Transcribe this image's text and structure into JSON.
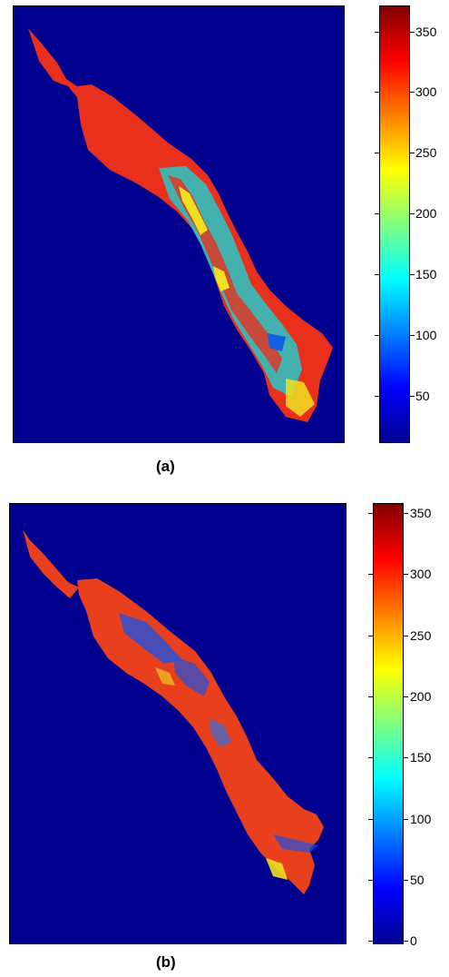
{
  "panels": [
    {
      "caption": "(a)",
      "colorbar": {
        "ticks": [
          "350",
          "300",
          "250",
          "200",
          "150",
          "100",
          "50"
        ],
        "tick_values": [
          350,
          300,
          250,
          200,
          150,
          100,
          50
        ],
        "range": [
          10,
          370
        ]
      }
    },
    {
      "caption": "(b)",
      "colorbar": {
        "ticks": [
          "350",
          "300",
          "250",
          "200",
          "150",
          "100",
          "50",
          "0"
        ],
        "tick_values": [
          350,
          300,
          250,
          200,
          150,
          100,
          50,
          0
        ],
        "range": [
          0,
          360
        ]
      }
    }
  ],
  "colors": {
    "background": "#00008f",
    "dominant_a": "#e8301c",
    "dominant_b": "#e8401c"
  }
}
